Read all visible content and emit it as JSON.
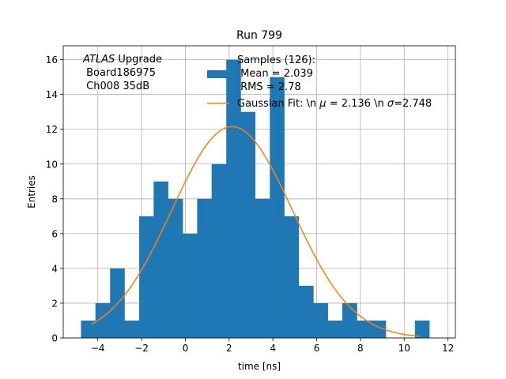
{
  "chart_data": {
    "type": "bar",
    "title": "Run 799",
    "xlabel": "time [ns]",
    "ylabel": "Entries",
    "xlim": [
      -5.58,
      12.34
    ],
    "ylim": [
      0,
      16.8
    ],
    "grid": true,
    "xticks": [
      -4,
      -2,
      0,
      2,
      4,
      6,
      8,
      10,
      12
    ],
    "xtick_labels": [
      "−4",
      "−2",
      "0",
      "2",
      "4",
      "6",
      "8",
      "10",
      "12"
    ],
    "yticks": [
      0,
      2,
      4,
      6,
      8,
      10,
      12,
      14,
      16
    ],
    "ytick_labels": [
      "0",
      "2",
      "4",
      "6",
      "8",
      "10",
      "12",
      "14",
      "16"
    ],
    "histogram": {
      "name": "Samples (126):\n Mean = 2.039\n RMS = 2.78",
      "color": "#1f77b4",
      "bin_edges": [
        -4.77,
        -4.11,
        -3.44,
        -2.78,
        -2.11,
        -1.45,
        -0.79,
        -0.12,
        0.54,
        1.2,
        1.87,
        2.53,
        3.19,
        3.86,
        4.52,
        5.18,
        5.85,
        6.51,
        7.17,
        7.84,
        8.5,
        9.16,
        9.83,
        10.49,
        11.15
      ],
      "counts": [
        1,
        2,
        4,
        1,
        7,
        9,
        8,
        6,
        8,
        10,
        16,
        13,
        8,
        15,
        7,
        3,
        2,
        1,
        2,
        1,
        1,
        0,
        0,
        1
      ]
    },
    "fit": {
      "name": "Gaussian Fit: \\n $\\mu$ = 2.136 \\n $\\sigma$=2.748",
      "color": "#ff7f0e",
      "type": "gaussian",
      "amplitude": 12.15,
      "mu": 2.136,
      "sigma": 2.748,
      "x_range": [
        -4.3,
        10.7
      ]
    },
    "legend": {
      "position": "top-right",
      "hist_label_lines": [
        "Samples (126):",
        " Mean = 2.039",
        " RMS = 2.78"
      ],
      "fit_label_parts": {
        "prefix": "Gaussian Fit: \\n ",
        "mu_symbol": "μ",
        "mu_text": " = 2.136 \\n ",
        "sigma_symbol": "σ",
        "sigma_text": "=2.748"
      }
    },
    "annotation": {
      "italic": "ATLAS",
      "rest": " Upgrade",
      "line2": " Board186975",
      "line3": " Ch008 35dB"
    }
  }
}
